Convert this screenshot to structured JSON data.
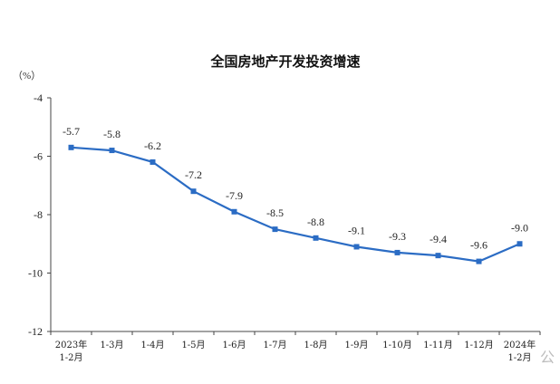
{
  "chart_data": {
    "type": "line",
    "title": "全国房地产开发投资增速",
    "unit_label": "（%）",
    "categories": [
      "2023年 1-2月",
      "1-3月",
      "1-4月",
      "1-5月",
      "1-6月",
      "1-7月",
      "1-8月",
      "1-9月",
      "1-10月",
      "1-11月",
      "1-12月",
      "2024年 1-2月"
    ],
    "category_lines": [
      [
        "2023年",
        "1-2月"
      ],
      [
        "1-3月"
      ],
      [
        "1-4月"
      ],
      [
        "1-5月"
      ],
      [
        "1-6月"
      ],
      [
        "1-7月"
      ],
      [
        "1-8月"
      ],
      [
        "1-9月"
      ],
      [
        "1-10月"
      ],
      [
        "1-11月"
      ],
      [
        "1-12月"
      ],
      [
        "2024年",
        "1-2月"
      ]
    ],
    "series": [
      {
        "values": [
          -5.7,
          -5.8,
          -6.2,
          -7.2,
          -7.9,
          -8.5,
          -8.8,
          -9.1,
          -9.3,
          -9.4,
          -9.6,
          -9.0
        ]
      }
    ],
    "data_labels": [
      "-5.7",
      "-5.8",
      "-6.2",
      "-7.2",
      "-7.9",
      "-8.5",
      "-8.8",
      "-9.1",
      "-9.3",
      "-9.4",
      "-9.6",
      "-9.0"
    ],
    "ylim": [
      -12,
      -4
    ],
    "yticks": [
      -4,
      -6,
      -8,
      -10,
      -12
    ],
    "ytick_labels": [
      "-4",
      "-6",
      "-8",
      "-10",
      "-12"
    ],
    "grid": false,
    "line_color": "#2b6cc4"
  },
  "watermark": "公"
}
